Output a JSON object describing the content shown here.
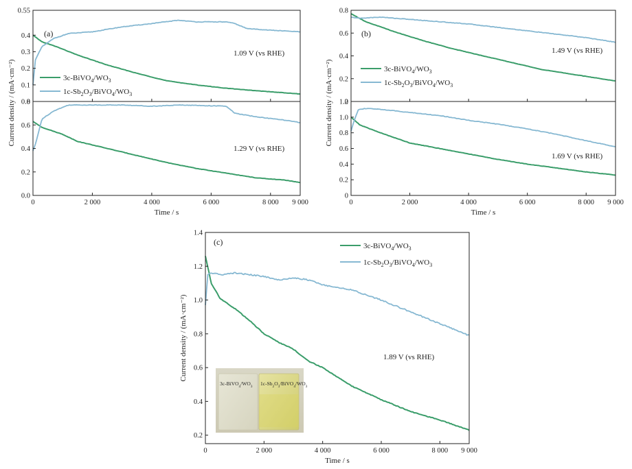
{
  "colors": {
    "bivo4": "#3a9d6a",
    "sb2o3": "#86b8d2",
    "axis": "#222222"
  },
  "chart_data": [
    {
      "id": "a",
      "panel_label": "(a)",
      "type": "line",
      "xlabel": "Time / s",
      "ylabel": "Current density / (mA·cm⁻²)",
      "xlim": [
        0,
        9000
      ],
      "xticks": [
        0,
        2000,
        4000,
        6000,
        8000,
        9000
      ],
      "xtick_labels": [
        "0",
        "2 000",
        "4 000",
        "6 000",
        "8 000",
        "9 000"
      ],
      "legend_position": "left",
      "subplots": [
        {
          "id": "a-top",
          "ylim": [
            0,
            0.55
          ],
          "yticks": [
            0,
            0.1,
            0.2,
            0.3,
            0.4,
            0.55
          ],
          "ytick_labels": [
            "0",
            "0.1",
            "0.2",
            "0.3",
            "0.4",
            "0.55"
          ],
          "annotation": "1.09 V (vs RHE)",
          "series": [
            {
              "name": "3c-BiVO4/WO3",
              "color_key": "bivo4",
              "x": [
                0,
                300,
                800,
                1500,
                2500,
                3500,
                4500,
                5500,
                6500,
                7500,
                8500,
                9000
              ],
              "y": [
                0.4,
                0.36,
                0.33,
                0.28,
                0.22,
                0.17,
                0.125,
                0.1,
                0.08,
                0.065,
                0.052,
                0.045
              ]
            },
            {
              "name": "1c-Sb2O3/BiVO4/WO3",
              "color_key": "sb2o3",
              "x": [
                0,
                80,
                300,
                700,
                1200,
                2000,
                3000,
                4000,
                4900,
                5500,
                6500,
                6800,
                7200,
                8000,
                9000
              ],
              "y": [
                0.1,
                0.25,
                0.33,
                0.38,
                0.41,
                0.42,
                0.45,
                0.47,
                0.49,
                0.48,
                0.48,
                0.47,
                0.44,
                0.43,
                0.42
              ]
            }
          ]
        },
        {
          "id": "a-bottom",
          "ylim": [
            0,
            0.8
          ],
          "yticks": [
            0,
            0.2,
            0.4,
            0.6,
            0.8
          ],
          "ytick_labels": [
            "0.0",
            "0.2",
            "0.4",
            "0.6",
            "0.8"
          ],
          "annotation": "1.29 V (vs RHE)",
          "series": [
            {
              "name": "3c-BiVO4/WO3",
              "color_key": "bivo4",
              "x": [
                0,
                300,
                1000,
                1500,
                2500,
                3500,
                4500,
                5500,
                6500,
                7500,
                8500,
                9000
              ],
              "y": [
                0.63,
                0.58,
                0.52,
                0.46,
                0.4,
                0.34,
                0.28,
                0.23,
                0.19,
                0.15,
                0.13,
                0.11
              ]
            },
            {
              "name": "1c-Sb2O3/BiVO4/WO3",
              "color_key": "sb2o3",
              "x": [
                0,
                100,
                300,
                700,
                1200,
                2000,
                3000,
                4000,
                5000,
                6500,
                6800,
                7500,
                8500,
                9000
              ],
              "y": [
                0.38,
                0.45,
                0.65,
                0.72,
                0.77,
                0.77,
                0.77,
                0.76,
                0.77,
                0.76,
                0.7,
                0.67,
                0.64,
                0.62
              ]
            }
          ]
        }
      ]
    },
    {
      "id": "b",
      "panel_label": "(b)",
      "type": "line",
      "xlabel": "Time / s",
      "ylabel": "Current density / (mA·cm⁻²)",
      "xlim": [
        0,
        9000
      ],
      "xticks": [
        0,
        2000,
        4000,
        6000,
        8000,
        9000
      ],
      "xtick_labels": [
        "0",
        "2 000",
        "4 000",
        "6 000",
        "8 000",
        "9 000"
      ],
      "legend_position": "left",
      "subplots": [
        {
          "id": "b-top",
          "ylim": [
            0,
            0.8
          ],
          "yticks": [
            0,
            0.2,
            0.4,
            0.6,
            0.8
          ],
          "ytick_labels": [
            "0",
            "0.2",
            "0.4",
            "0.6",
            "0.8"
          ],
          "annotation": "1.49 V (vs RHE)",
          "series": [
            {
              "name": "3c-BiVO4/WO3",
              "color_key": "bivo4",
              "x": [
                0,
                500,
                1500,
                2500,
                3500,
                4500,
                5500,
                6500,
                7500,
                8500,
                9000
              ],
              "y": [
                0.77,
                0.7,
                0.61,
                0.53,
                0.46,
                0.4,
                0.34,
                0.28,
                0.24,
                0.2,
                0.18
              ]
            },
            {
              "name": "1c-Sb2O3/BiVO4/WO3",
              "color_key": "sb2o3",
              "x": [
                0,
                300,
                1000,
                2000,
                3000,
                4000,
                5000,
                6000,
                7000,
                8000,
                9000
              ],
              "y": [
                0.74,
                0.73,
                0.74,
                0.72,
                0.7,
                0.68,
                0.65,
                0.62,
                0.59,
                0.56,
                0.52
              ]
            }
          ]
        },
        {
          "id": "b-bottom",
          "ylim": [
            0,
            1.2
          ],
          "yticks": [
            0,
            0.2,
            0.4,
            0.6,
            0.8,
            1.0,
            1.2
          ],
          "ytick_labels": [
            "0",
            "0.2",
            "0.4",
            "0.6",
            "0.8",
            "1.0",
            "1.2"
          ],
          "annotation": "1.69 V (vs RHE)",
          "series": [
            {
              "name": "3c-BiVO4/WO3",
              "color_key": "bivo4",
              "x": [
                0,
                300,
                1000,
                2000,
                3000,
                4000,
                5000,
                6000,
                7000,
                8000,
                9000
              ],
              "y": [
                1.0,
                0.9,
                0.8,
                0.67,
                0.6,
                0.53,
                0.46,
                0.4,
                0.35,
                0.3,
                0.26
              ]
            },
            {
              "name": "1c-Sb2O3/BiVO4/WO3",
              "color_key": "sb2o3",
              "x": [
                0,
                100,
                250,
                500,
                1000,
                2000,
                3000,
                4000,
                5000,
                6000,
                7000,
                8000,
                9000
              ],
              "y": [
                0.82,
                0.95,
                1.1,
                1.11,
                1.1,
                1.06,
                1.02,
                0.96,
                0.91,
                0.85,
                0.78,
                0.7,
                0.62
              ]
            }
          ]
        }
      ]
    },
    {
      "id": "c",
      "panel_label": "(c)",
      "type": "line",
      "xlabel": "Time / s",
      "ylabel": "Current density / (mA·cm⁻²)",
      "xlim": [
        0,
        9000
      ],
      "ylim": [
        0.15,
        1.4
      ],
      "xticks": [
        0,
        2000,
        4000,
        6000,
        8000,
        9000
      ],
      "xtick_labels": [
        "0",
        "2 000",
        "4 000",
        "6 000",
        "8 000",
        "9 000"
      ],
      "yticks": [
        0.2,
        0.4,
        0.6,
        0.8,
        1.0,
        1.2,
        1.4
      ],
      "ytick_labels": [
        "0.2",
        "0.4",
        "0.6",
        "0.8",
        "1.0",
        "1.2",
        "1.4"
      ],
      "annotation": "1.89 V (vs RHE)",
      "legend_position": "top-right",
      "series": [
        {
          "name": "3c-BiVO4/WO3",
          "color_key": "bivo4",
          "x": [
            0,
            200,
            500,
            1000,
            1500,
            2000,
            2500,
            3000,
            3500,
            4000,
            5000,
            6000,
            7000,
            8000,
            9000
          ],
          "y": [
            1.26,
            1.1,
            1.01,
            0.95,
            0.88,
            0.8,
            0.75,
            0.71,
            0.64,
            0.6,
            0.49,
            0.41,
            0.34,
            0.29,
            0.23
          ]
        },
        {
          "name": "1c-Sb2O3/BiVO4/WO3",
          "color_key": "sb2o3",
          "x": [
            0,
            80,
            200,
            500,
            1000,
            1500,
            2000,
            2500,
            3000,
            3500,
            4000,
            5000,
            6000,
            7000,
            8000,
            9000
          ],
          "y": [
            0.97,
            1.15,
            1.16,
            1.15,
            1.16,
            1.15,
            1.14,
            1.12,
            1.13,
            1.12,
            1.09,
            1.06,
            1.0,
            0.93,
            0.86,
            0.79
          ]
        }
      ],
      "inset_photo": {
        "left_label": "3c-BiVO4/WO3",
        "right_label": "1c-Sb2O3/BiVO4/WO3"
      }
    }
  ]
}
